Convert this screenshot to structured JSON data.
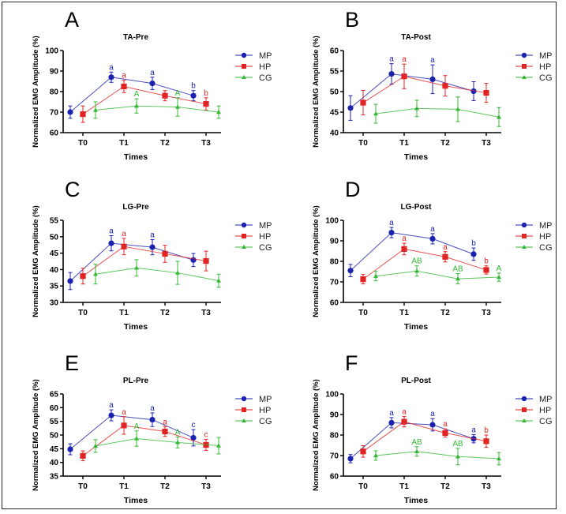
{
  "colors": {
    "MP": "#1c22b0",
    "HP": "#e02424",
    "CG": "#34b834"
  },
  "markers": {
    "MP": "circle",
    "HP": "square",
    "CG": "triangle"
  },
  "chart_data": [
    {
      "type": "line",
      "panel": "A",
      "title": "TA-Pre",
      "xlabel": "Times",
      "ylabel": "Normalized EMG Amplitude (%)",
      "categories": [
        "T0",
        "T1",
        "T2",
        "T3"
      ],
      "ylim": [
        60,
        100
      ],
      "yticks": [
        60,
        70,
        80,
        90,
        100
      ],
      "legend": "right",
      "series": [
        {
          "name": "MP",
          "values": [
            70,
            87,
            84,
            78
          ],
          "errors": [
            3,
            2.5,
            3,
            2.5
          ],
          "labels": [
            "",
            "a",
            "a",
            "b"
          ]
        },
        {
          "name": "HP",
          "values": [
            69,
            82.5,
            78,
            74
          ],
          "errors": [
            4,
            3,
            2.5,
            3
          ],
          "labels": [
            "",
            "a",
            "",
            "b"
          ]
        },
        {
          "name": "CG",
          "values": [
            71,
            73,
            72.5,
            70
          ],
          "errors": [
            4,
            3.5,
            4.5,
            3
          ],
          "labels": [
            "",
            "A",
            "A",
            ""
          ]
        }
      ]
    },
    {
      "type": "line",
      "panel": "B",
      "title": "TA-Post",
      "xlabel": "Times",
      "ylabel": "Normalized EMG Amplitude (%)",
      "categories": [
        "T0",
        "T1",
        "T2",
        "T3"
      ],
      "ylim": [
        40,
        60
      ],
      "yticks": [
        40,
        45,
        50,
        55,
        60
      ],
      "legend": "right",
      "series": [
        {
          "name": "MP",
          "values": [
            46,
            54.3,
            53,
            50.1
          ],
          "errors": [
            3,
            2.5,
            3.5,
            2.3
          ],
          "labels": [
            "",
            "a",
            "a",
            ""
          ]
        },
        {
          "name": "HP",
          "values": [
            47.3,
            53.7,
            51.4,
            49.7
          ],
          "errors": [
            3,
            3,
            2.5,
            2.3
          ],
          "labels": [
            "",
            "a",
            "",
            ""
          ]
        },
        {
          "name": "CG",
          "values": [
            44.6,
            45.9,
            45.7,
            43.8
          ],
          "errors": [
            2.3,
            2,
            3,
            2.3
          ],
          "labels": [
            "",
            "",
            "",
            ""
          ]
        }
      ]
    },
    {
      "type": "line",
      "panel": "C",
      "title": "LG-Pre",
      "xlabel": "Times",
      "ylabel": "Normalized EMG Amplitude (%)",
      "categories": [
        "T0",
        "T1",
        "T2",
        "T3"
      ],
      "ylim": [
        30,
        55
      ],
      "yticks": [
        30,
        35,
        40,
        45,
        50,
        55
      ],
      "legend": "right",
      "series": [
        {
          "name": "MP",
          "values": [
            36.5,
            48,
            46.8,
            42.9
          ],
          "errors": [
            2.6,
            2.3,
            2.3,
            2
          ],
          "labels": [
            "",
            "a",
            "a",
            ""
          ]
        },
        {
          "name": "HP",
          "values": [
            38,
            47,
            44.8,
            42.6
          ],
          "errors": [
            2.4,
            2.5,
            2.6,
            3
          ],
          "labels": [
            "",
            "a",
            "",
            ""
          ]
        },
        {
          "name": "CG",
          "values": [
            38.6,
            40.5,
            39,
            36.6
          ],
          "errors": [
            3,
            2.5,
            3.5,
            2
          ],
          "labels": [
            "",
            "",
            "",
            ""
          ]
        }
      ]
    },
    {
      "type": "line",
      "panel": "D",
      "title": "LG-Post",
      "xlabel": "Times",
      "ylabel": "Normalized EMG Amplitude (%)",
      "categories": [
        "T0",
        "T1",
        "T2",
        "T3"
      ],
      "ylim": [
        60,
        100
      ],
      "yticks": [
        60,
        70,
        80,
        90,
        100
      ],
      "legend": "right",
      "series": [
        {
          "name": "MP",
          "values": [
            75.5,
            94,
            91,
            83.5
          ],
          "errors": [
            3,
            2.5,
            2.5,
            3
          ],
          "labels": [
            "",
            "a",
            "a",
            "b"
          ]
        },
        {
          "name": "HP",
          "values": [
            71.3,
            86,
            82.2,
            75.8
          ],
          "errors": [
            2.3,
            2.8,
            2.5,
            2
          ],
          "labels": [
            "",
            "a",
            "a",
            "b"
          ]
        },
        {
          "name": "CG",
          "values": [
            72.8,
            75.3,
            71.5,
            72.3
          ],
          "errors": [
            2.3,
            2.5,
            2.5,
            2
          ],
          "labels": [
            "",
            "AB",
            "AB",
            "A"
          ]
        }
      ]
    },
    {
      "type": "line",
      "panel": "E",
      "title": "PL-Pre",
      "xlabel": "Times",
      "ylabel": "Normalized EMG Amplitude (%)",
      "categories": [
        "T0",
        "T1",
        "T2",
        "T3"
      ],
      "ylim": [
        35,
        65
      ],
      "yticks": [
        35,
        40,
        45,
        50,
        55,
        60,
        65
      ],
      "legend": "right",
      "series": [
        {
          "name": "MP",
          "values": [
            44.8,
            57.2,
            55.6,
            49
          ],
          "errors": [
            2,
            2,
            2.5,
            3
          ],
          "labels": [
            "",
            "a",
            "a",
            "c"
          ]
        },
        {
          "name": "HP",
          "values": [
            42.4,
            53.5,
            51.3,
            46.4
          ],
          "errors": [
            1.8,
            3.2,
            1.8,
            2
          ],
          "labels": [
            "",
            "a",
            "a",
            "c"
          ]
        },
        {
          "name": "CG",
          "values": [
            46,
            48.7,
            47.3,
            46.1
          ],
          "errors": [
            2.3,
            2.8,
            2,
            3
          ],
          "labels": [
            "",
            "A",
            "A",
            ""
          ]
        }
      ]
    },
    {
      "type": "line",
      "panel": "F",
      "title": "PL-Post",
      "xlabel": "Times",
      "ylabel": "Normalized EMG Amplitude (%)",
      "categories": [
        "T0",
        "T1",
        "T2",
        "T3"
      ],
      "ylim": [
        60,
        100
      ],
      "yticks": [
        60,
        70,
        80,
        90,
        100
      ],
      "legend": "right",
      "series": [
        {
          "name": "MP",
          "values": [
            68.5,
            86,
            85,
            78.2
          ],
          "errors": [
            2,
            2.5,
            3,
            2
          ],
          "labels": [
            "",
            "a",
            "a",
            "a"
          ]
        },
        {
          "name": "HP",
          "values": [
            72,
            86.5,
            81,
            77
          ],
          "errors": [
            2.8,
            2.5,
            2,
            3
          ],
          "labels": [
            "",
            "a",
            "a",
            "b"
          ]
        },
        {
          "name": "CG",
          "values": [
            70,
            72,
            69.5,
            68.5
          ],
          "errors": [
            2.3,
            2.3,
            4,
            3
          ],
          "labels": [
            "",
            "AB",
            "AB",
            ""
          ]
        }
      ]
    }
  ]
}
